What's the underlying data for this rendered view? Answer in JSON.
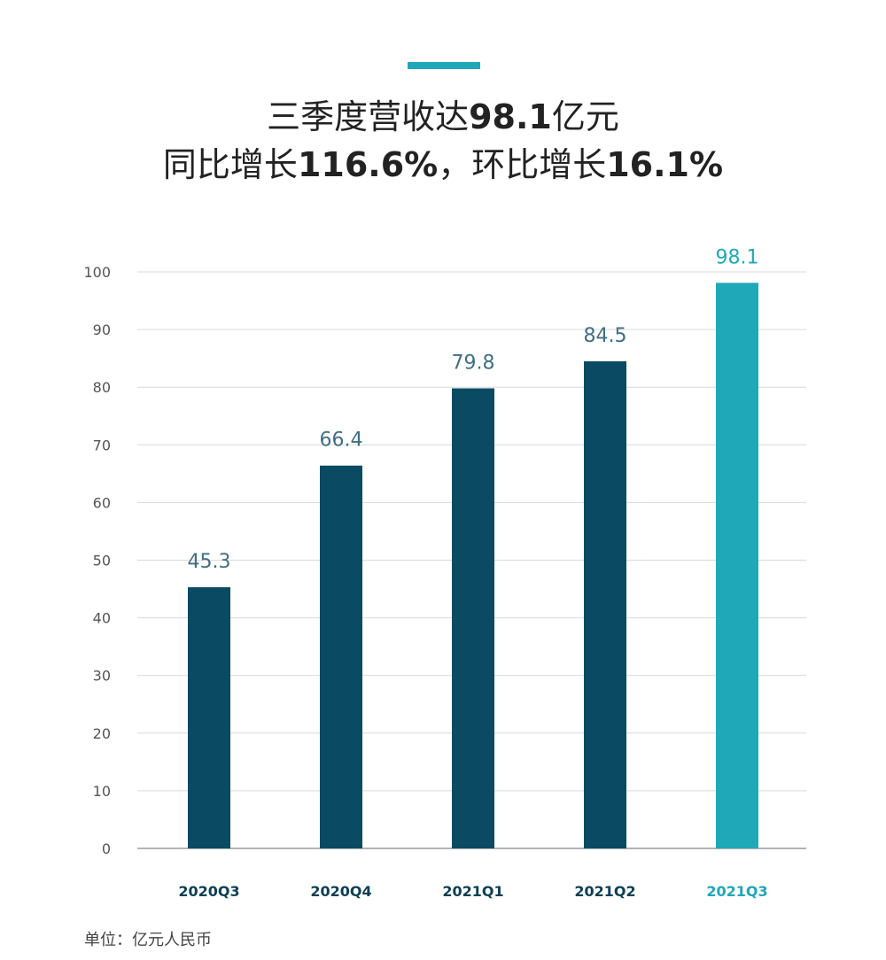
{
  "header": {
    "title_line1_prefix": "三季度营收达",
    "title_line1_value": "98.1",
    "title_line1_suffix": "亿元",
    "title_line2_a": "同比增长",
    "title_line2_b": "116.6%",
    "title_line2_c": "，环比增长",
    "title_line2_d": "16.1%"
  },
  "colors": {
    "accent": "#1fa8b8",
    "bar_default": "#0b4a63",
    "bar_highlight": "#1fa8b8",
    "value_label_default": "#3f6f84",
    "category_label_default": "#0b3f55",
    "grid": "#d9d9d9"
  },
  "chart_data": {
    "type": "bar",
    "categories": [
      "2020Q3",
      "2020Q4",
      "2021Q1",
      "2021Q2",
      "2021Q3"
    ],
    "values": [
      45.3,
      66.4,
      79.8,
      84.5,
      98.1
    ],
    "value_labels": [
      "45.3",
      "66.4",
      "79.8",
      "84.5",
      "98.1"
    ],
    "highlight_index": 4,
    "ylim": [
      0,
      100
    ],
    "yticks": [
      0,
      10,
      20,
      30,
      40,
      50,
      60,
      70,
      80,
      90,
      100
    ],
    "grid": true
  },
  "footer": {
    "unit": "单位：亿元人民币"
  }
}
